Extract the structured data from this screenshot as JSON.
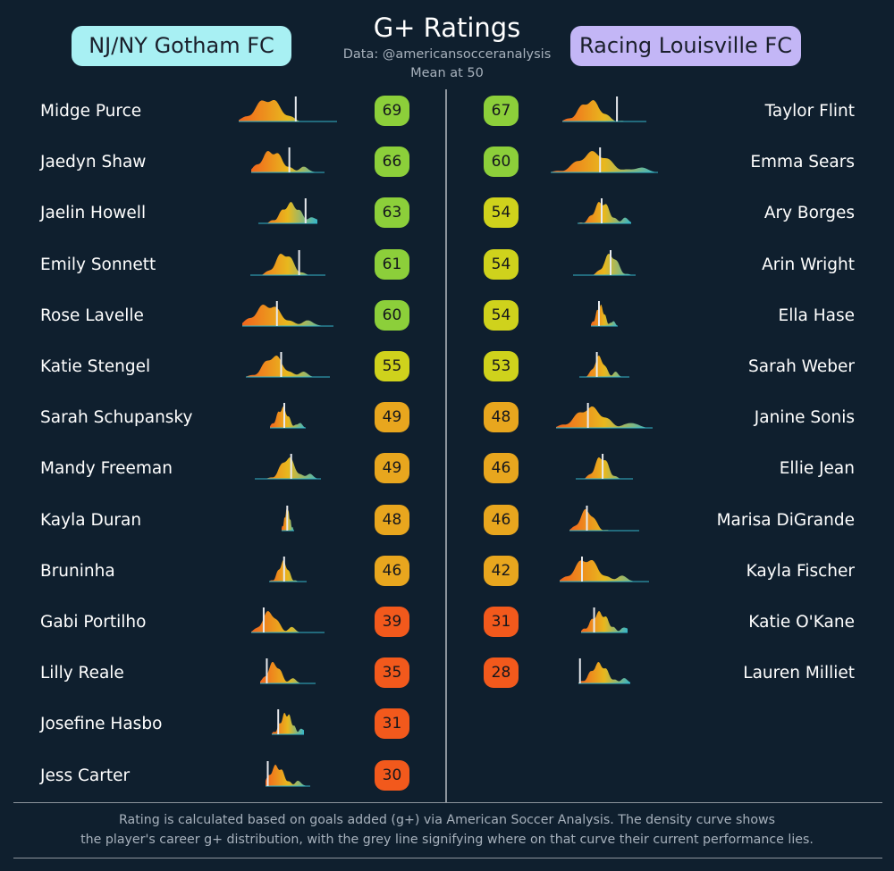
{
  "title": "G+ Ratings",
  "subtitle_data": "Data: @americansocceranalysis",
  "subtitle_mean": "Mean at 50",
  "teams": {
    "left": "NJ/NY Gotham FC",
    "right": "Racing Louisville FC"
  },
  "footer": {
    "line1": "Rating is calculated based on goals added (g+) via American Soccer Analysis. The density curve shows",
    "line2": "the player's career g+ distribution, with the grey line signifying where on that curve their current performance lies."
  },
  "colors": {
    "background": "#0f1f2e",
    "rating_high": "#8ccf3a",
    "rating_mid": "#cfd21c",
    "rating_lowmid": "#e8a61e",
    "rating_low": "#f2591c",
    "curve_left": "#f2641c",
    "curve_mid": "#e8b81e",
    "curve_right": "#35b6c9",
    "marker": "#e8eaee"
  },
  "chart_data": [
    {
      "type": "table",
      "team": "NJ/NY Gotham FC",
      "columns": [
        "player",
        "rating"
      ],
      "rows": [
        {
          "player": "Midge Purce",
          "rating": 69,
          "curve": {
            "width": 110,
            "peak": 0.3,
            "spread": 0.18,
            "current": 0.58,
            "bumps": 1
          }
        },
        {
          "player": "Jaedyn Shaw",
          "rating": 66,
          "curve": {
            "width": 82,
            "peak": 0.28,
            "spread": 0.2,
            "current": 0.52,
            "bumps": 2
          }
        },
        {
          "player": "Jaelin Howell",
          "rating": 63,
          "curve": {
            "width": 66,
            "peak": 0.55,
            "spread": 0.22,
            "current": 0.8,
            "bumps": 2
          }
        },
        {
          "player": "Emily Sonnett",
          "rating": 61,
          "curve": {
            "width": 84,
            "peak": 0.45,
            "spread": 0.16,
            "current": 0.65,
            "bumps": 1
          }
        },
        {
          "player": "Rose Lavelle",
          "rating": 60,
          "curve": {
            "width": 102,
            "peak": 0.28,
            "spread": 0.2,
            "current": 0.38,
            "bumps": 2
          }
        },
        {
          "player": "Katie Stengel",
          "rating": 55,
          "curve": {
            "width": 94,
            "peak": 0.33,
            "spread": 0.16,
            "current": 0.42,
            "bumps": 2
          }
        },
        {
          "player": "Sarah Schupansky",
          "rating": 49,
          "curve": {
            "width": 40,
            "peak": 0.35,
            "spread": 0.22,
            "current": 0.4,
            "bumps": 2
          }
        },
        {
          "player": "Mandy Freeman",
          "rating": 49,
          "curve": {
            "width": 74,
            "peak": 0.5,
            "spread": 0.15,
            "current": 0.55,
            "bumps": 2
          }
        },
        {
          "player": "Kayla Duran",
          "rating": 48,
          "curve": {
            "width": 14,
            "peak": 0.45,
            "spread": 0.3,
            "current": 0.45,
            "bumps": 1
          }
        },
        {
          "player": "Bruninha",
          "rating": 46,
          "curve": {
            "width": 42,
            "peak": 0.38,
            "spread": 0.18,
            "current": 0.4,
            "bumps": 1
          }
        },
        {
          "player": "Gabi Portilho",
          "rating": 39,
          "curve": {
            "width": 82,
            "peak": 0.25,
            "spread": 0.14,
            "current": 0.17,
            "bumps": 2
          }
        },
        {
          "player": "Lilly Reale",
          "rating": 35,
          "curve": {
            "width": 62,
            "peak": 0.25,
            "spread": 0.16,
            "current": 0.12,
            "bumps": 2
          }
        },
        {
          "player": "Josefine Hasbo",
          "rating": 31,
          "curve": {
            "width": 36,
            "peak": 0.45,
            "spread": 0.25,
            "current": 0.2,
            "bumps": 2
          }
        },
        {
          "player": "Jess Carter",
          "rating": 30,
          "curve": {
            "width": 50,
            "peak": 0.25,
            "spread": 0.22,
            "current": 0.05,
            "bumps": 2
          }
        }
      ]
    },
    {
      "type": "table",
      "team": "Racing Louisville FC",
      "columns": [
        "player",
        "rating"
      ],
      "rows": [
        {
          "player": "Taylor Flint",
          "rating": 67,
          "curve": {
            "width": 94,
            "peak": 0.33,
            "spread": 0.18,
            "current": 0.65,
            "bumps": 1
          }
        },
        {
          "player": "Emma Sears",
          "rating": 60,
          "curve": {
            "width": 120,
            "peak": 0.4,
            "spread": 0.2,
            "current": 0.46,
            "bumps": 2
          }
        },
        {
          "player": "Ary Borges",
          "rating": 54,
          "curve": {
            "width": 60,
            "peak": 0.45,
            "spread": 0.2,
            "current": 0.45,
            "bumps": 2
          }
        },
        {
          "player": "Arin Wright",
          "rating": 54,
          "curve": {
            "width": 70,
            "peak": 0.6,
            "spread": 0.15,
            "current": 0.6,
            "bumps": 1
          }
        },
        {
          "player": "Ella Hase",
          "rating": 54,
          "curve": {
            "width": 30,
            "peak": 0.35,
            "spread": 0.22,
            "current": 0.3,
            "bumps": 2
          }
        },
        {
          "player": "Sarah Weber",
          "rating": 53,
          "curve": {
            "width": 56,
            "peak": 0.4,
            "spread": 0.15,
            "current": 0.35,
            "bumps": 2
          }
        },
        {
          "player": "Janine Sonis",
          "rating": 48,
          "curve": {
            "width": 108,
            "peak": 0.35,
            "spread": 0.2,
            "current": 0.33,
            "bumps": 2
          }
        },
        {
          "player": "Ellie Jean",
          "rating": 46,
          "curve": {
            "width": 64,
            "peak": 0.45,
            "spread": 0.16,
            "current": 0.47,
            "bumps": 1
          }
        },
        {
          "player": "Marisa DiGrande",
          "rating": 46,
          "curve": {
            "width": 78,
            "peak": 0.25,
            "spread": 0.14,
            "current": 0.25,
            "bumps": 1
          }
        },
        {
          "player": "Kayla Fischer",
          "rating": 42,
          "curve": {
            "width": 100,
            "peak": 0.3,
            "spread": 0.18,
            "current": 0.25,
            "bumps": 2
          }
        },
        {
          "player": "Katie O'Kane",
          "rating": 31,
          "curve": {
            "width": 52,
            "peak": 0.4,
            "spread": 0.25,
            "current": 0.28,
            "bumps": 2
          }
        },
        {
          "player": "Lauren Milliet",
          "rating": 28,
          "curve": {
            "width": 58,
            "peak": 0.4,
            "spread": 0.22,
            "current": 0.03,
            "bumps": 2
          }
        }
      ]
    }
  ]
}
